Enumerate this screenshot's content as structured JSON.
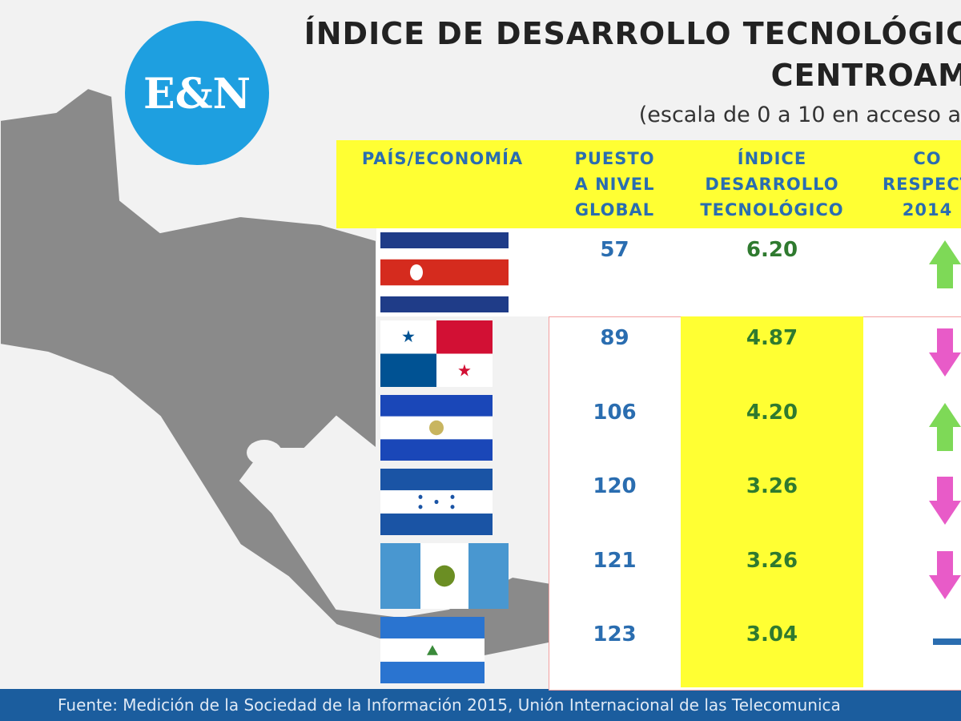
{
  "logo": "E&N",
  "header": {
    "title_lines": [
      "ÍNDICE DE DESARROLLO TECNOLÓGIC",
      "CENTROAM"
    ],
    "subtitle": "(escala de 0 a 10 en acceso a"
  },
  "table": {
    "columns": [
      [
        "PAÍS/ECONOMÍA"
      ],
      [
        "PUESTO",
        "A NIVEL",
        "GLOBAL"
      ],
      [
        "ÍNDICE",
        "DESARROLLO",
        "TECNOLÓGICO"
      ],
      [
        "CO",
        "RESPECT",
        "2014"
      ]
    ],
    "rows": [
      [
        "57",
        "6.20"
      ],
      [
        "89",
        "4.87"
      ],
      [
        "106",
        "4.20"
      ],
      [
        "120",
        "3.26"
      ],
      [
        "121",
        "3.26"
      ],
      [
        "123",
        "3.04"
      ]
    ]
  },
  "footer": "Fuente: Medición de la Sociedad de la Información 2015, Unión Internacional de las Telecomunica"
}
